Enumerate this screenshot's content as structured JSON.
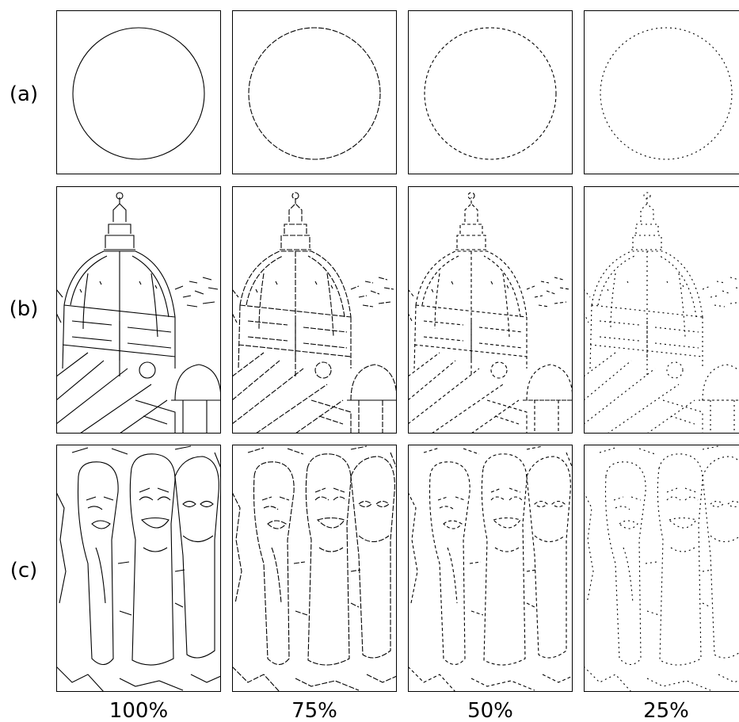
{
  "rows": [
    {
      "label": "(a)"
    },
    {
      "label": "(b)"
    },
    {
      "label": "(c)"
    }
  ],
  "columns": [
    "100%",
    "75%",
    "50%",
    "25%"
  ]
}
